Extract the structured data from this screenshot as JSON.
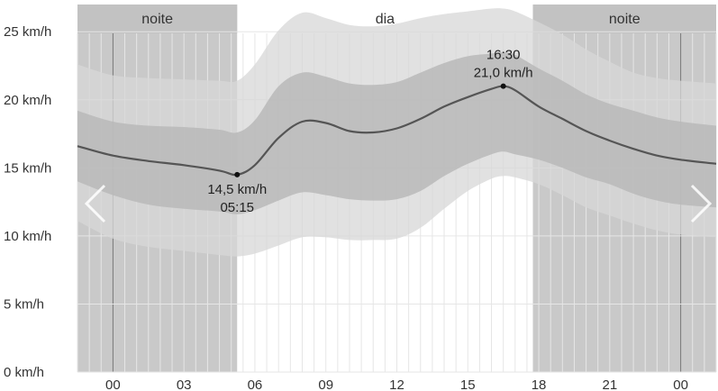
{
  "chart_data": {
    "type": "area",
    "units": "km/h",
    "y_ticks": [
      "0 km/h",
      "5 km/h",
      "10 km/h",
      "15 km/h",
      "20 km/h",
      "25 km/h"
    ],
    "ylim": [
      0,
      27
    ],
    "xlim": [
      -1.5,
      25.5
    ],
    "x_ticks": [
      {
        "hour": 0,
        "label": "00"
      },
      {
        "hour": 3,
        "label": "03"
      },
      {
        "hour": 6,
        "label": "06"
      },
      {
        "hour": 9,
        "label": "09"
      },
      {
        "hour": 12,
        "label": "12"
      },
      {
        "hour": 15,
        "label": "15"
      },
      {
        "hour": 18,
        "label": "18"
      },
      {
        "hour": 21,
        "label": "21"
      },
      {
        "hour": 24,
        "label": "00"
      }
    ],
    "periods": [
      {
        "label": "noite",
        "start": -1.5,
        "end": 5.25,
        "type": "night"
      },
      {
        "label": "dia",
        "start": 5.25,
        "end": 17.75,
        "type": "day"
      },
      {
        "label": "noite",
        "start": 17.75,
        "end": 25.5,
        "type": "night"
      }
    ],
    "x_hours": [
      -1.5,
      0,
      1.5,
      3,
      4.5,
      5.25,
      6,
      7,
      8,
      9,
      10,
      11,
      12,
      13,
      14,
      15,
      16,
      16.5,
      17,
      18,
      19,
      20,
      21,
      22,
      23,
      24,
      25.5
    ],
    "series": [
      {
        "name": "median",
        "values": [
          16.6,
          15.9,
          15.5,
          15.2,
          14.8,
          14.5,
          15.2,
          17.2,
          18.4,
          18.3,
          17.7,
          17.6,
          17.9,
          18.6,
          19.5,
          20.2,
          20.8,
          21.0,
          20.7,
          19.5,
          18.6,
          17.7,
          17.0,
          16.4,
          15.9,
          15.6,
          15.3
        ]
      },
      {
        "name": "inner_low",
        "values": [
          14.0,
          13.0,
          12.3,
          12.0,
          11.8,
          11.6,
          11.9,
          12.6,
          13.2,
          13.0,
          12.7,
          12.6,
          12.7,
          13.3,
          14.4,
          15.3,
          16.0,
          16.2,
          16.0,
          15.6,
          15.0,
          14.3,
          13.8,
          13.1,
          12.6,
          12.3,
          12.1
        ]
      },
      {
        "name": "inner_high",
        "values": [
          19.2,
          18.4,
          18.1,
          18.0,
          17.8,
          17.6,
          18.5,
          21.0,
          22.0,
          21.7,
          21.2,
          21.1,
          21.3,
          22.0,
          22.7,
          23.2,
          23.4,
          23.5,
          23.3,
          22.3,
          21.4,
          20.4,
          19.7,
          19.2,
          18.7,
          18.4,
          18.1
        ]
      },
      {
        "name": "outer_low",
        "values": [
          11.1,
          9.8,
          9.2,
          8.9,
          8.6,
          8.5,
          8.7,
          9.3,
          9.9,
          9.9,
          9.7,
          9.7,
          9.8,
          10.6,
          12.0,
          13.3,
          14.2,
          14.4,
          14.3,
          13.8,
          13.0,
          12.1,
          11.5,
          10.9,
          10.4,
          10.1,
          9.9
        ]
      },
      {
        "name": "outer_high",
        "values": [
          22.6,
          21.8,
          21.6,
          21.5,
          21.4,
          21.4,
          22.6,
          25.1,
          26.4,
          26.0,
          25.5,
          25.4,
          25.6,
          26.0,
          26.3,
          26.5,
          26.7,
          26.7,
          26.5,
          25.7,
          24.8,
          23.7,
          22.8,
          22.0,
          21.6,
          21.4,
          21.2
        ]
      }
    ],
    "annotations": [
      {
        "hour": 5.25,
        "value": 14.5,
        "value_label": "14,5 km/h",
        "time_label": "05:15",
        "position": "below"
      },
      {
        "hour": 16.5,
        "value": 21.0,
        "value_label": "21,0 km/h",
        "time_label": "16:30",
        "position": "above"
      }
    ],
    "grid": true
  },
  "colors": {
    "night_band": "#c9c9c9",
    "night_header": "#c2c2c2",
    "outer_band": "#d7d7d7",
    "inner_band": "#b9b9b9",
    "median_line": "#555555",
    "grid": "#e6e6e6",
    "midnight_line": "#777777",
    "text": "#333333"
  },
  "navigation": {
    "prev_icon": "chevron-left-icon",
    "next_icon": "chevron-right-icon"
  }
}
